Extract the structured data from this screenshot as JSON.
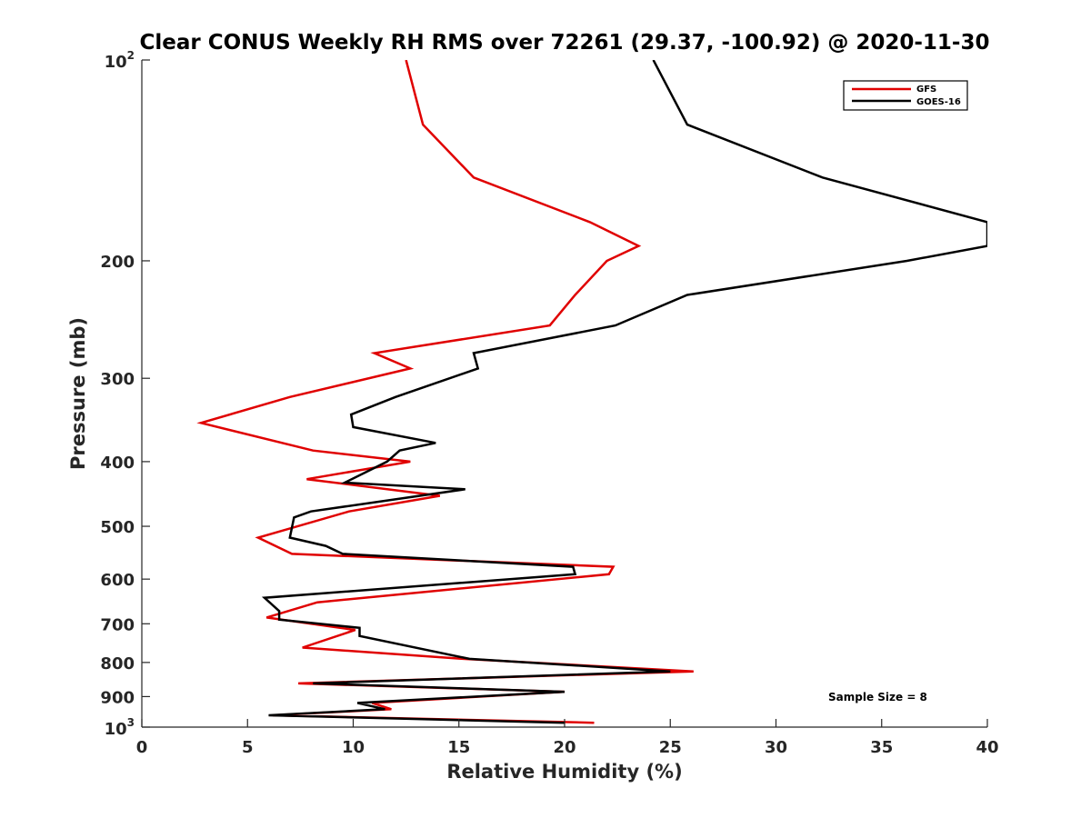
{
  "chart_data": {
    "type": "line",
    "title": "Clear CONUS Weekly RH RMS over 72261 (29.37, -100.92) @ 2020-11-30",
    "xlabel": "Relative Humidity (%)",
    "ylabel": "Pressure (mb)",
    "xlim": [
      0,
      40
    ],
    "ylim": [
      100,
      1000
    ],
    "y_scale": "log",
    "y_reversed": true,
    "grid": false,
    "legend_position": "top-right",
    "x_ticks": [
      "0",
      "5",
      "10",
      "15",
      "20",
      "25",
      "30",
      "35",
      "40"
    ],
    "y_ticks": [
      {
        "value": 100,
        "base": "10",
        "exp": "2"
      },
      {
        "value": 200,
        "label": "200"
      },
      {
        "value": 300,
        "label": "300"
      },
      {
        "value": 400,
        "label": "400"
      },
      {
        "value": 500,
        "label": "500"
      },
      {
        "value": 600,
        "label": "600"
      },
      {
        "value": 700,
        "label": "700"
      },
      {
        "value": 800,
        "label": "800"
      },
      {
        "value": 900,
        "label": "900"
      },
      {
        "value": 1000,
        "base": "10",
        "exp": "3"
      }
    ],
    "annotation": "Sample Size = 8",
    "series": [
      {
        "name": "GFS",
        "color": "#e00000",
        "points": [
          [
            12.5,
            100
          ],
          [
            13.3,
            125
          ],
          [
            15.7,
            150
          ],
          [
            21.2,
            175
          ],
          [
            23.5,
            190
          ],
          [
            22.0,
            200
          ],
          [
            20.5,
            225
          ],
          [
            19.3,
            250
          ],
          [
            11.0,
            275
          ],
          [
            12.7,
            290
          ],
          [
            7.0,
            320
          ],
          [
            2.8,
            350
          ],
          [
            8.1,
            385
          ],
          [
            12.7,
            400
          ],
          [
            7.8,
            425
          ],
          [
            14.1,
            450
          ],
          [
            9.8,
            475
          ],
          [
            5.5,
            520
          ],
          [
            7.1,
            550
          ],
          [
            22.3,
            575
          ],
          [
            22.1,
            590
          ],
          [
            8.3,
            650
          ],
          [
            5.9,
            685
          ],
          [
            10.1,
            715
          ],
          [
            7.6,
            760
          ],
          [
            15.2,
            790
          ],
          [
            26.1,
            825
          ],
          [
            7.4,
            860
          ],
          [
            20.0,
            885
          ],
          [
            10.9,
            920
          ],
          [
            11.8,
            940
          ],
          [
            6.2,
            960
          ],
          [
            21.4,
            985
          ]
        ]
      },
      {
        "name": "GOES-16",
        "color": "#000000",
        "points": [
          [
            24.2,
            100
          ],
          [
            25.8,
            125
          ],
          [
            32.2,
            150
          ],
          [
            40.0,
            175
          ],
          [
            40.0,
            190
          ],
          [
            36.2,
            200
          ],
          [
            25.8,
            225
          ],
          [
            22.4,
            250
          ],
          [
            15.7,
            275
          ],
          [
            15.9,
            290
          ],
          [
            12.0,
            320
          ],
          [
            9.9,
            340
          ],
          [
            10.0,
            355
          ],
          [
            13.9,
            375
          ],
          [
            12.2,
            385
          ],
          [
            11.6,
            400
          ],
          [
            9.6,
            430
          ],
          [
            15.3,
            440
          ],
          [
            8.0,
            475
          ],
          [
            7.2,
            485
          ],
          [
            7.0,
            520
          ],
          [
            8.7,
            535
          ],
          [
            9.5,
            550
          ],
          [
            20.4,
            575
          ],
          [
            20.5,
            590
          ],
          [
            5.8,
            640
          ],
          [
            6.5,
            670
          ],
          [
            6.5,
            690
          ],
          [
            10.3,
            710
          ],
          [
            10.3,
            730
          ],
          [
            15.5,
            790
          ],
          [
            25.0,
            825
          ],
          [
            8.1,
            860
          ],
          [
            20.0,
            885
          ],
          [
            10.2,
            920
          ],
          [
            11.5,
            940
          ],
          [
            6.0,
            960
          ],
          [
            20.0,
            985
          ]
        ]
      }
    ]
  }
}
